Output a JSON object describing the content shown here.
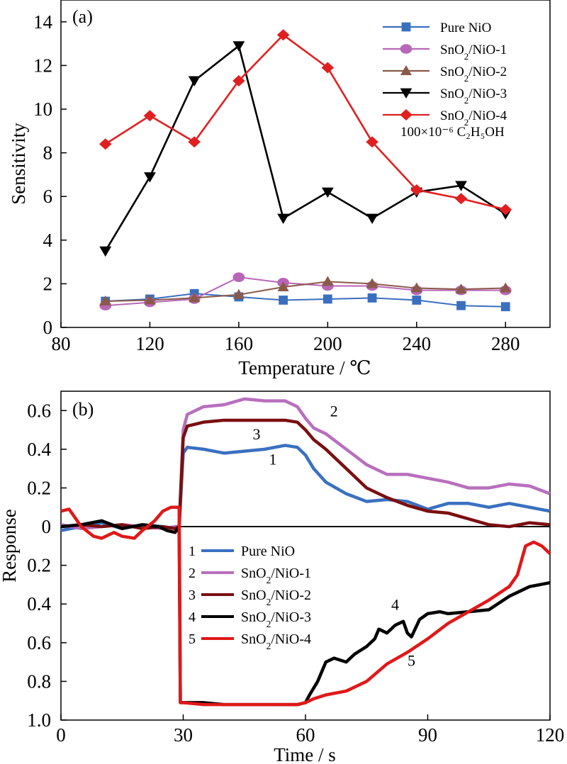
{
  "chart_data": [
    {
      "type": "line",
      "panel_label": "(a)",
      "xlabel": "Temperature / ℃",
      "ylabel": "Sensitivity",
      "xlim": [
        80,
        300
      ],
      "ylim": [
        0,
        15
      ],
      "xticks": [
        80,
        120,
        160,
        200,
        240,
        280
      ],
      "yticks": [
        0,
        2,
        4,
        6,
        8,
        10,
        12,
        14
      ],
      "legend_position": "top-right",
      "annotation": "100×10⁻⁶ C₂H₅OH",
      "x": [
        100,
        120,
        140,
        160,
        180,
        200,
        220,
        240,
        260,
        280
      ],
      "series": [
        {
          "name": "Pure NiO",
          "color": "#3a6fbf",
          "marker": "square",
          "values": [
            1.2,
            1.3,
            1.55,
            1.4,
            1.25,
            1.3,
            1.35,
            1.25,
            1.0,
            0.95
          ]
        },
        {
          "name": "SnO₂/NiO-1",
          "color": "#b866b8",
          "marker": "circle",
          "values": [
            1.0,
            1.15,
            1.3,
            2.3,
            2.05,
            1.9,
            1.9,
            1.7,
            1.7,
            1.7
          ]
        },
        {
          "name": "SnO₂/NiO-2",
          "color": "#8a5a48",
          "marker": "triangle-up",
          "values": [
            1.2,
            1.25,
            1.35,
            1.5,
            1.85,
            2.1,
            2.0,
            1.8,
            1.75,
            1.8
          ]
        },
        {
          "name": "SnO₂/NiO-3",
          "color": "#000000",
          "marker": "triangle-down",
          "values": [
            3.5,
            6.9,
            11.3,
            12.9,
            5.0,
            6.2,
            5.0,
            6.2,
            6.5,
            5.2
          ]
        },
        {
          "name": "SnO₂/NiO-4",
          "color": "#e02020",
          "marker": "diamond",
          "values": [
            8.4,
            9.7,
            8.5,
            11.3,
            13.4,
            11.9,
            8.5,
            6.3,
            5.9,
            5.4
          ]
        }
      ]
    },
    {
      "type": "line",
      "panel_label": "(b)",
      "xlabel": "Time / s",
      "ylabel": "Response",
      "xlim": [
        0,
        120
      ],
      "ylim": [
        -1.0,
        0.7
      ],
      "xticks": [
        0,
        30,
        60,
        90,
        120
      ],
      "yticks": [
        0.6,
        0.4,
        0.2,
        0,
        -0.2,
        -0.4,
        -0.6,
        -0.8,
        -1.0
      ],
      "ytick_labels": [
        "0.6",
        "0.4",
        "0.2",
        "0",
        "0.2",
        "0.4",
        "0.6",
        "0.8",
        "1.0"
      ],
      "legend_position": "bottom-left",
      "series": [
        {
          "name": "Pure NiO",
          "number": "1",
          "color": "#3a70c0",
          "x": [
            0,
            5,
            10,
            15,
            20,
            25,
            28,
            29,
            30,
            31,
            35,
            40,
            45,
            50,
            55,
            58,
            60,
            62,
            65,
            70,
            75,
            80,
            85,
            90,
            95,
            100,
            105,
            110,
            115,
            120
          ],
          "values": [
            -0.02,
            0.0,
            0.02,
            -0.01,
            0.01,
            0.0,
            -0.01,
            0.0,
            0.38,
            0.41,
            0.4,
            0.38,
            0.39,
            0.4,
            0.42,
            0.41,
            0.37,
            0.3,
            0.23,
            0.17,
            0.13,
            0.14,
            0.13,
            0.09,
            0.12,
            0.12,
            0.1,
            0.12,
            0.1,
            0.08
          ]
        },
        {
          "name": "SnO₂/NiO-1",
          "number": "2",
          "color": "#b86fbd",
          "x": [
            0,
            5,
            10,
            15,
            20,
            25,
            28,
            29,
            30,
            31,
            35,
            40,
            45,
            50,
            55,
            58,
            60,
            62,
            65,
            70,
            75,
            80,
            85,
            90,
            95,
            100,
            105,
            110,
            115,
            120
          ],
          "values": [
            0.01,
            -0.01,
            0.0,
            0.01,
            0.0,
            -0.01,
            0.0,
            0.0,
            0.5,
            0.58,
            0.62,
            0.63,
            0.66,
            0.65,
            0.65,
            0.62,
            0.56,
            0.51,
            0.48,
            0.4,
            0.32,
            0.27,
            0.27,
            0.25,
            0.23,
            0.2,
            0.2,
            0.22,
            0.21,
            0.17
          ]
        },
        {
          "name": "SnO₂/NiO-2",
          "number": "3",
          "color": "#7a0f10",
          "x": [
            0,
            5,
            10,
            15,
            20,
            25,
            28,
            29,
            30,
            31,
            35,
            40,
            45,
            50,
            55,
            58,
            60,
            62,
            65,
            70,
            75,
            80,
            85,
            90,
            95,
            100,
            105,
            110,
            115,
            120
          ],
          "values": [
            0.0,
            0.01,
            0.0,
            0.01,
            -0.01,
            0.0,
            -0.01,
            0.0,
            0.46,
            0.52,
            0.54,
            0.55,
            0.55,
            0.55,
            0.55,
            0.54,
            0.5,
            0.45,
            0.4,
            0.3,
            0.2,
            0.15,
            0.11,
            0.08,
            0.07,
            0.04,
            0.01,
            0.0,
            0.02,
            0.01
          ]
        },
        {
          "name": "SnO₂/NiO-3",
          "number": "4",
          "color": "#000000",
          "x": [
            0,
            5,
            10,
            15,
            20,
            24,
            26,
            28,
            29,
            29.3,
            30,
            35,
            40,
            45,
            50,
            55,
            58,
            60,
            61,
            63,
            65,
            67,
            70,
            72,
            75,
            77,
            78,
            80,
            82,
            84,
            85,
            86,
            88,
            90,
            93,
            95,
            100,
            105,
            110,
            115,
            120
          ],
          "values": [
            0.0,
            0.01,
            0.03,
            -0.01,
            0.01,
            0.0,
            -0.02,
            -0.03,
            0.0,
            -0.91,
            -0.91,
            -0.91,
            -0.92,
            -0.92,
            -0.92,
            -0.92,
            -0.92,
            -0.91,
            -0.87,
            -0.8,
            -0.7,
            -0.68,
            -0.7,
            -0.66,
            -0.62,
            -0.58,
            -0.53,
            -0.55,
            -0.51,
            -0.49,
            -0.55,
            -0.57,
            -0.48,
            -0.45,
            -0.44,
            -0.45,
            -0.44,
            -0.43,
            -0.36,
            -0.31,
            -0.29
          ]
        },
        {
          "name": "SnO₂/NiO-4",
          "number": "5",
          "color": "#e01818",
          "x": [
            0,
            2,
            5,
            8,
            10,
            13,
            15,
            18,
            20,
            23,
            25,
            27,
            28,
            29,
            29.3,
            30,
            35,
            40,
            45,
            50,
            55,
            58,
            60,
            62,
            65,
            70,
            75,
            80,
            85,
            90,
            95,
            100,
            105,
            110,
            112,
            114,
            116,
            118,
            120
          ],
          "values": [
            0.08,
            0.09,
            0.0,
            -0.05,
            -0.06,
            -0.03,
            -0.05,
            -0.06,
            -0.02,
            0.03,
            0.08,
            0.1,
            0.1,
            0.1,
            -0.91,
            -0.91,
            -0.92,
            -0.92,
            -0.92,
            -0.92,
            -0.92,
            -0.92,
            -0.91,
            -0.89,
            -0.87,
            -0.85,
            -0.8,
            -0.71,
            -0.65,
            -0.58,
            -0.5,
            -0.44,
            -0.38,
            -0.31,
            -0.25,
            -0.1,
            -0.08,
            -0.1,
            -0.14
          ]
        }
      ],
      "curve_labels": [
        {
          "text": "1",
          "x": 52,
          "y": 0.32
        },
        {
          "text": "2",
          "x": 67,
          "y": 0.57
        },
        {
          "text": "3",
          "x": 48,
          "y": 0.45
        },
        {
          "text": "4",
          "x": 82,
          "y": -0.43
        },
        {
          "text": "5",
          "x": 86,
          "y": -0.72
        }
      ]
    }
  ]
}
